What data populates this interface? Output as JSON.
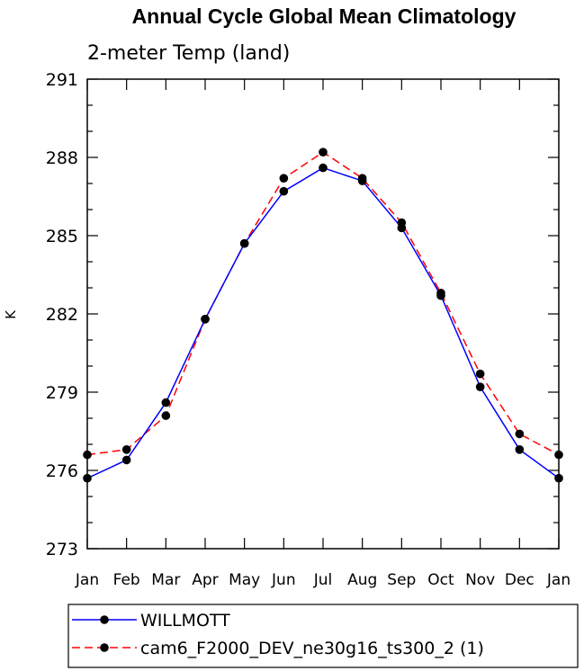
{
  "chart_data": {
    "type": "line",
    "title": "Annual Cycle Global Mean Climatology",
    "subtitle": "2-meter Temp (land)",
    "ylabel": "K",
    "xlabel": "",
    "ylim": [
      273,
      291
    ],
    "yticks": [
      273,
      276,
      279,
      282,
      285,
      288,
      291
    ],
    "ytick_labels": [
      "273",
      "276",
      "279",
      "282",
      "285",
      "288",
      "291"
    ],
    "y_minor_step": 1,
    "categories": [
      "Jan",
      "Feb",
      "Mar",
      "Apr",
      "May",
      "Jun",
      "Jul",
      "Aug",
      "Sep",
      "Oct",
      "Nov",
      "Dec",
      "Jan"
    ],
    "grid": false,
    "legend_position": "bottom",
    "series": [
      {
        "name": "WILLMOTT",
        "color": "#0000ff",
        "dash": "solid",
        "marker": "filled-circle",
        "values": [
          275.7,
          276.4,
          278.6,
          281.8,
          284.7,
          286.7,
          287.6,
          287.1,
          285.3,
          282.7,
          279.2,
          276.8,
          275.7
        ]
      },
      {
        "name": "cam6_F2000_DEV_ne30g16_ts300_2 (1)",
        "color": "#ff0000",
        "dash": "dashed",
        "marker": "filled-circle",
        "values": [
          276.6,
          276.8,
          278.1,
          281.8,
          284.7,
          287.2,
          288.2,
          287.2,
          285.5,
          282.8,
          279.7,
          277.4,
          276.6
        ]
      }
    ]
  }
}
